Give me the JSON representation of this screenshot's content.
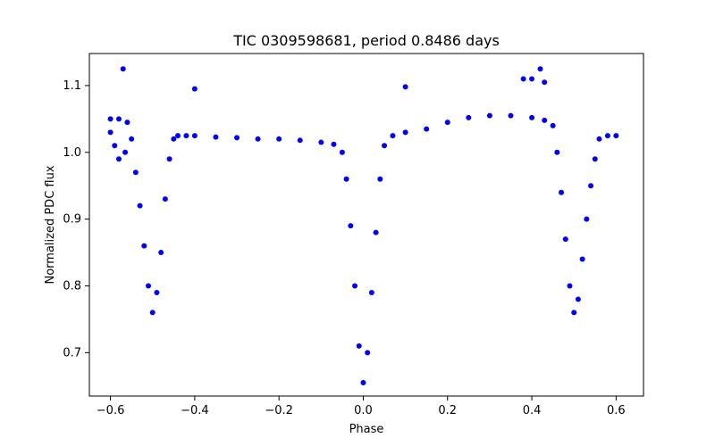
{
  "chart_data": {
    "type": "scatter",
    "title": "TIC 0309598681, period 0.8486 days",
    "xlabel": "Phase",
    "ylabel": "Normalized PDC flux",
    "xlim": [
      -0.65,
      0.665
    ],
    "ylim": [
      0.635,
      1.148
    ],
    "xticks": [
      -0.6,
      -0.4,
      -0.2,
      0.0,
      0.2,
      0.4,
      0.6
    ],
    "xtick_labels": [
      "−0.6",
      "−0.4",
      "−0.2",
      "0.0",
      "0.2",
      "0.4",
      "0.6"
    ],
    "yticks": [
      0.7,
      0.8,
      0.9,
      1.0,
      1.1
    ],
    "ytick_labels": [
      "0.7",
      "0.8",
      "0.9",
      "1.0",
      "1.1"
    ],
    "grid": false,
    "marker_color": "#0000ff",
    "series": [
      {
        "name": "",
        "x": [
          -0.6,
          -0.58,
          -0.56,
          -0.55,
          -0.54,
          -0.53,
          -0.52,
          -0.51,
          -0.5,
          -0.49,
          -0.48,
          -0.47,
          -0.46,
          -0.45,
          -0.44,
          -0.42,
          -0.4,
          -0.35,
          -0.3,
          -0.25,
          -0.2,
          -0.15,
          -0.1,
          -0.07,
          -0.05,
          -0.04,
          -0.03,
          -0.02,
          -0.01,
          0.0,
          0.01,
          0.02,
          0.03,
          0.04,
          0.05,
          0.07,
          0.1,
          0.15,
          0.2,
          0.25,
          0.3,
          0.35,
          0.4,
          0.43,
          0.45,
          0.46,
          0.47,
          0.48,
          0.49,
          0.5,
          0.51,
          0.52,
          0.53,
          0.54,
          0.55,
          0.56,
          0.58,
          0.6,
          -0.57,
          -0.565,
          0.42,
          0.43,
          -0.4,
          0.1,
          0.38,
          0.4,
          -0.59,
          -0.58,
          -0.6
        ],
        "y": [
          1.05,
          1.05,
          1.045,
          1.02,
          0.97,
          0.92,
          0.86,
          0.8,
          0.76,
          0.79,
          0.85,
          0.93,
          0.99,
          1.02,
          1.025,
          1.025,
          1.025,
          1.023,
          1.022,
          1.02,
          1.02,
          1.018,
          1.015,
          1.012,
          1.0,
          0.96,
          0.89,
          0.8,
          0.71,
          0.655,
          0.7,
          0.79,
          0.88,
          0.96,
          1.01,
          1.025,
          1.03,
          1.035,
          1.045,
          1.052,
          1.055,
          1.055,
          1.052,
          1.048,
          1.04,
          1.0,
          0.94,
          0.87,
          0.8,
          0.76,
          0.78,
          0.84,
          0.9,
          0.95,
          0.99,
          1.02,
          1.025,
          1.025,
          1.125,
          1.0,
          1.125,
          1.105,
          1.095,
          1.098,
          1.11,
          1.11,
          1.01,
          0.99,
          1.03
        ]
      }
    ]
  }
}
